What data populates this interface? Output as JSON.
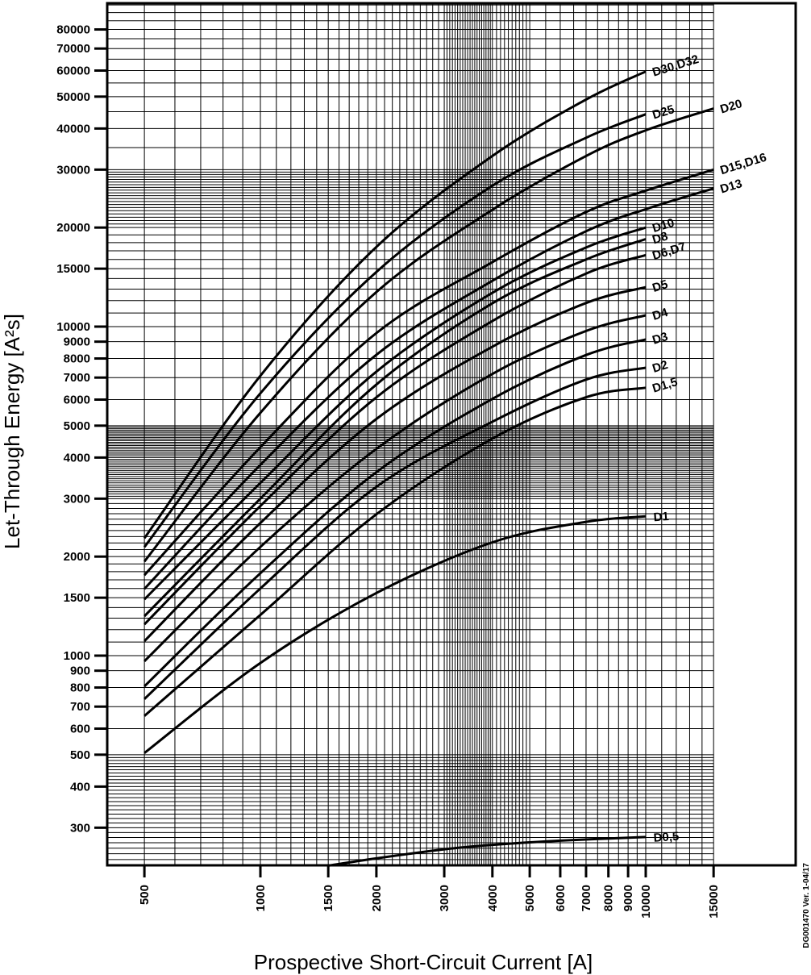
{
  "chart_data": {
    "type": "line",
    "title": "",
    "xlabel": "Prospective Short-Circuit Current [A]",
    "ylabel": "Let-Through Energy [A²s]",
    "xscale": "log",
    "yscale": "log",
    "xlim": [
      400,
      24500
    ],
    "ylim": [
      230,
      95000
    ],
    "grid": true,
    "legend": "inline labels at curve ends",
    "x_ticks": [
      500,
      1000,
      1500,
      2000,
      3000,
      4000,
      5000,
      6000,
      7000,
      8000,
      9000,
      10000,
      15000
    ],
    "y_ticks": [
      300,
      400,
      500,
      600,
      700,
      800,
      900,
      1000,
      1500,
      2000,
      3000,
      4000,
      5000,
      6000,
      7000,
      8000,
      9000,
      10000,
      15000,
      20000,
      30000,
      40000,
      50000,
      60000,
      70000,
      80000
    ],
    "line_color": "#000000",
    "series": [
      {
        "name": "D30,D32",
        "x": [
          500,
          1000,
          2000,
          4000,
          7000,
          10000
        ],
        "y": [
          2275,
          7090,
          17460,
          33000,
          49000,
          59600
        ]
      },
      {
        "name": "D25",
        "x": [
          500,
          1000,
          2000,
          4000,
          7000,
          10000
        ],
        "y": [
          2138,
          6270,
          14660,
          26800,
          37500,
          44200
        ]
      },
      {
        "name": "D20",
        "x": [
          500,
          1000,
          2000,
          4000,
          7000,
          10000,
          15000
        ],
        "y": [
          1932,
          5470,
          12740,
          22650,
          33000,
          39500,
          46000
        ]
      },
      {
        "name": "D15,D16",
        "x": [
          500,
          1000,
          2000,
          4000,
          7000,
          10000,
          15000
        ],
        "y": [
          1756,
          4300,
          9560,
          15700,
          22300,
          25900,
          30000
        ]
      },
      {
        "name": "D13",
        "x": [
          500,
          1000,
          2000,
          4000,
          7000,
          10000,
          15000
        ],
        "y": [
          1596,
          3800,
          8210,
          13780,
          19500,
          22750,
          26300
        ]
      },
      {
        "name": "D10",
        "x": [
          500,
          1000,
          2000,
          4000,
          7000,
          10000
        ],
        "y": [
          1483,
          3350,
          7300,
          12670,
          17400,
          20000
        ]
      },
      {
        "name": "D8",
        "x": [
          500,
          1000,
          2000,
          4000,
          7000,
          10000
        ],
        "y": [
          1318,
          3000,
          6670,
          11770,
          16000,
          18450
        ]
      },
      {
        "name": "D6,D7",
        "x": [
          500,
          1000,
          2000,
          4000,
          7000,
          10000
        ],
        "y": [
          1245,
          2850,
          6095,
          10400,
          14500,
          16500
        ]
      },
      {
        "name": "D5",
        "x": [
          500,
          1000,
          2000,
          4000,
          7000,
          10000
        ],
        "y": [
          1107,
          2530,
          5240,
          8690,
          11800,
          13180
        ]
      },
      {
        "name": "D4",
        "x": [
          500,
          1000,
          2000,
          4000,
          7000,
          10000
        ],
        "y": [
          962,
          2140,
          4250,
          7180,
          9700,
          10820
        ]
      },
      {
        "name": "D3",
        "x": [
          500,
          1000,
          2000,
          4000,
          7000,
          10000
        ],
        "y": [
          807,
          1780,
          3610,
          6030,
          8200,
          9140
        ]
      },
      {
        "name": "D2",
        "x": [
          500,
          1000,
          2000,
          4000,
          7000,
          10000
        ],
        "y": [
          738,
          1600,
          3260,
          5140,
          6900,
          7500
        ]
      },
      {
        "name": "D1,5",
        "x": [
          500,
          1000,
          2000,
          4000,
          7000,
          10000
        ],
        "y": [
          656,
          1330,
          2690,
          4570,
          6100,
          6520
        ]
      },
      {
        "name": "D1",
        "x": [
          500,
          1000,
          2000,
          4000,
          7000,
          10000
        ],
        "y": [
          506,
          950,
          1550,
          2210,
          2550,
          2650
        ]
      },
      {
        "name": "D0,5",
        "x": [
          1500,
          2000,
          3000,
          4000,
          6000,
          10000
        ],
        "y": [
          230,
          242,
          258,
          266,
          274,
          281
        ]
      }
    ]
  },
  "watermark": "DG001470 Ver. 1-04/17"
}
